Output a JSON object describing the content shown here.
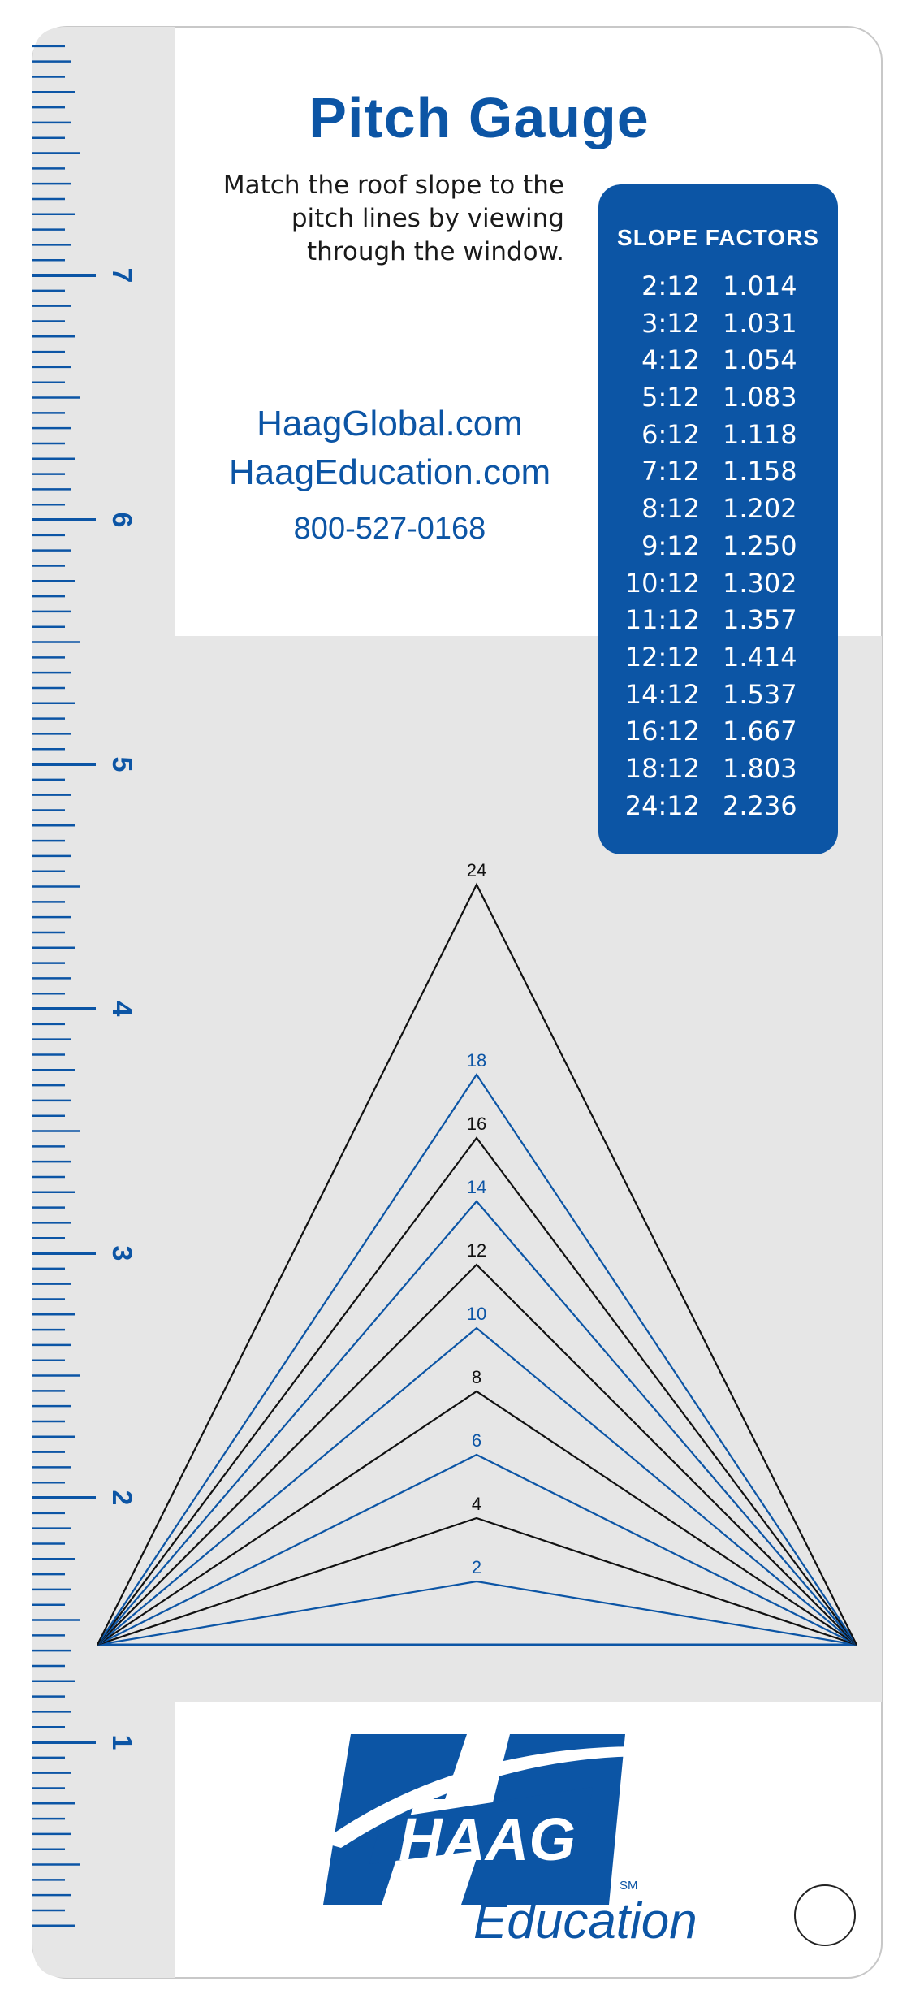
{
  "gauge": {
    "title": "Pitch Gauge",
    "instructions": "Match the roof slope to the pitch lines by viewing through the window.",
    "website_primary": "HaagGlobal.com",
    "website_education": "HaagEducation.com",
    "phone": "800-527-0168"
  },
  "slope_factors": {
    "heading": "SLOPE FACTORS",
    "rows": [
      {
        "ratio": "2:12",
        "factor": "1.014"
      },
      {
        "ratio": "3:12",
        "factor": "1.031"
      },
      {
        "ratio": "4:12",
        "factor": "1.054"
      },
      {
        "ratio": "5:12",
        "factor": "1.083"
      },
      {
        "ratio": "6:12",
        "factor": "1.118"
      },
      {
        "ratio": "7:12",
        "factor": "1.158"
      },
      {
        "ratio": "8:12",
        "factor": "1.202"
      },
      {
        "ratio": "9:12",
        "factor": "1.250"
      },
      {
        "ratio": "10:12",
        "factor": "1.302"
      },
      {
        "ratio": "11:12",
        "factor": "1.357"
      },
      {
        "ratio": "12:12",
        "factor": "1.414"
      },
      {
        "ratio": "14:12",
        "factor": "1.537"
      },
      {
        "ratio": "16:12",
        "factor": "1.667"
      },
      {
        "ratio": "18:12",
        "factor": "1.803"
      },
      {
        "ratio": "24:12",
        "factor": "2.236"
      }
    ]
  },
  "pitch_lines": [
    {
      "label": "2",
      "rise": 2,
      "color": "#0c55a5"
    },
    {
      "label": "4",
      "rise": 4,
      "color": "#111111"
    },
    {
      "label": "6",
      "rise": 6,
      "color": "#0c55a5"
    },
    {
      "label": "8",
      "rise": 8,
      "color": "#111111"
    },
    {
      "label": "10",
      "rise": 10,
      "color": "#0c55a5"
    },
    {
      "label": "12",
      "rise": 12,
      "color": "#111111"
    },
    {
      "label": "14",
      "rise": 14,
      "color": "#0c55a5"
    },
    {
      "label": "16",
      "rise": 16,
      "color": "#111111"
    },
    {
      "label": "18",
      "rise": 18,
      "color": "#0c55a5"
    },
    {
      "label": "24",
      "rise": 24,
      "color": "#111111"
    }
  ],
  "ruler": {
    "labels": [
      "1",
      "2",
      "3",
      "4",
      "5",
      "6",
      "7"
    ]
  },
  "logo": {
    "wordmark": "HAAG",
    "trademark": "SM",
    "subtitle": "Education"
  },
  "colors": {
    "brand_blue": "#0c55a5",
    "ruler_gray": "#e6e6e6",
    "window_gray": "#e6e6e6"
  }
}
